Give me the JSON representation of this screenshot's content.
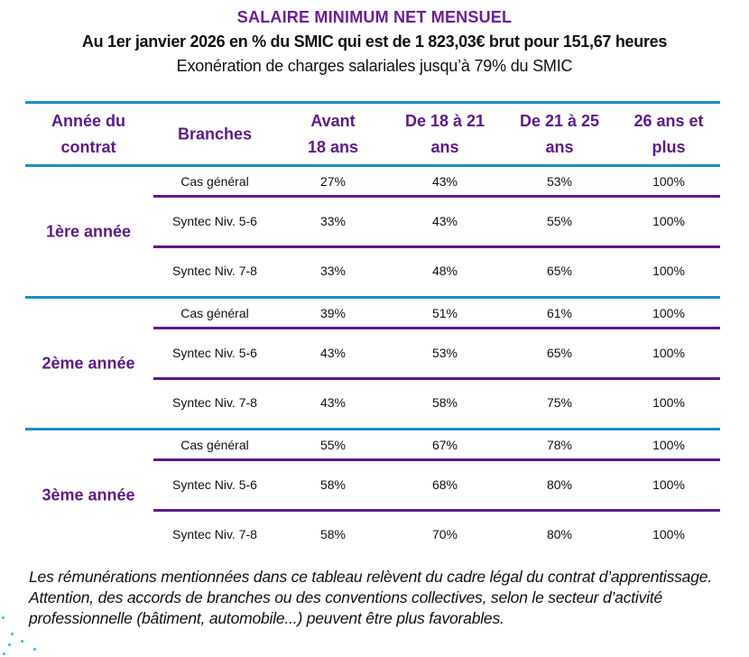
{
  "header": {
    "title": "SALAIRE MINIMUM NET MENSUEL",
    "subtitle": "Au 1er janvier 2026 en % du SMIC qui est de 1 823,03€ brut pour 151,67 heures",
    "note": "Exonération de charges salariales jusqu’à 79% du SMIC"
  },
  "colors": {
    "accent_purple": "#5c1a8c",
    "title_purple": "#6a1e9a",
    "line_blue": "#1a8fc7",
    "dots_cyan": "#3fb7e6"
  },
  "table": {
    "columns": [
      {
        "line1": "Année du",
        "line2": "contrat"
      },
      {
        "line1": "Branches",
        "line2": ""
      },
      {
        "line1": "Avant",
        "line2": "18 ans"
      },
      {
        "line1": "De 18 à 21",
        "line2": "ans"
      },
      {
        "line1": "De 21 à 25",
        "line2": "ans"
      },
      {
        "line1": "26 ans et",
        "line2": "plus"
      }
    ],
    "groups": [
      {
        "year": "1ère année",
        "rows": [
          {
            "branch": "Cas général",
            "values": [
              "27%",
              "43%",
              "53%",
              "100%"
            ]
          },
          {
            "branch": "Syntec  Niv. 5-6",
            "values": [
              "33%",
              "43%",
              "55%",
              "100%"
            ]
          },
          {
            "branch": "Syntec  Niv. 7-8",
            "values": [
              "33%",
              "48%",
              "65%",
              "100%"
            ]
          }
        ]
      },
      {
        "year": "2ème année",
        "rows": [
          {
            "branch": "Cas général",
            "values": [
              "39%",
              "51%",
              "61%",
              "100%"
            ]
          },
          {
            "branch": "Syntec  Niv. 5-6",
            "values": [
              "43%",
              "53%",
              "65%",
              "100%"
            ]
          },
          {
            "branch": "Syntec  Niv. 7-8",
            "values": [
              "43%",
              "58%",
              "75%",
              "100%"
            ]
          }
        ]
      },
      {
        "year": "3ème année",
        "rows": [
          {
            "branch": "Cas général",
            "values": [
              "55%",
              "67%",
              "78%",
              "100%"
            ]
          },
          {
            "branch": "Syntec  Niv. 5-6",
            "values": [
              "58%",
              "68%",
              "80%",
              "100%"
            ]
          },
          {
            "branch": "Syntec  Niv. 7-8",
            "values": [
              "58%",
              "70%",
              "80%",
              "100%"
            ]
          }
        ]
      }
    ]
  },
  "footer": {
    "text": "Les rémunérations mentionnées dans ce tableau relèvent du cadre légal du contrat d’apprentissage. Attention, des accords de branches ou des conventions collectives, selon le secteur d’activité professionnelle (bâtiment, automobile...) peuvent être plus favorables."
  }
}
